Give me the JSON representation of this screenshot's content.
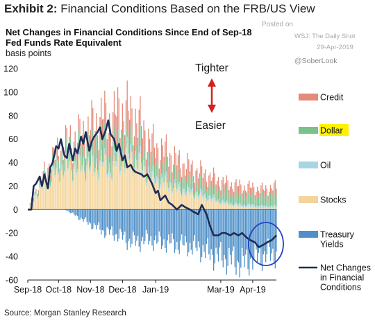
{
  "header": {
    "exhibit_label": "Exhibit 2:",
    "exhibit_title": "Financial Conditions Based on the FRB/US View"
  },
  "watermark": {
    "posted": "Posted on",
    "outlet": "WSJ: The Daily Shot",
    "date": "29-Apr-2019",
    "handle": "@SoberLook"
  },
  "footer": {
    "source": "Source: Morgan Stanley Research"
  },
  "colors": {
    "credit": "#e58a78",
    "dollar": "#7cc08e",
    "oil": "#a8d6e0",
    "stocks": "#f4d49a",
    "treasury": "#4f90c9",
    "net": "#1f2d56",
    "arrow": "#d42020",
    "circle": "#2340c0",
    "highlight": "#fff200"
  },
  "chart_data": {
    "type": "area",
    "title": "Net Changes in Financial Conditions Since End of Sep-18",
    "subtitle": "Fed Funds Rate Equivalent",
    "ylabel": "basis points",
    "ylim": [
      -60,
      120
    ],
    "yticks": [
      -60,
      -40,
      -20,
      0,
      20,
      40,
      60,
      80,
      100,
      120
    ],
    "xlim": [
      "2018-09-28",
      "2019-04-26"
    ],
    "xtick_labels": [
      "Sep-18",
      "Oct-18",
      "Nov-18",
      "Dec-18",
      "Jan-19",
      "Mar-19",
      "Apr-19"
    ],
    "xtick_dates": [
      "2018-09-28",
      "2018-10-24",
      "2018-11-20",
      "2018-12-17",
      "2019-01-14",
      "2019-03-10",
      "2019-04-06"
    ],
    "grid": false,
    "legend_position": "right",
    "annotations": {
      "up": "Tighter",
      "down": "Easier"
    },
    "series": [
      {
        "name": "Credit",
        "key": "credit",
        "dates": [
          "2018-09-28",
          "2018-10-05",
          "2018-10-12",
          "2018-10-19",
          "2018-10-26",
          "2018-11-02",
          "2018-11-09",
          "2018-11-16",
          "2018-11-23",
          "2018-11-30",
          "2018-12-07",
          "2018-12-14",
          "2018-12-21",
          "2018-12-28",
          "2019-01-04",
          "2019-01-11",
          "2019-01-18",
          "2019-01-25",
          "2019-02-01",
          "2019-02-08",
          "2019-02-15",
          "2019-02-22",
          "2019-03-01",
          "2019-03-08",
          "2019-03-15",
          "2019-03-22",
          "2019-03-29",
          "2019-04-05",
          "2019-04-12",
          "2019-04-19",
          "2019-04-26"
        ],
        "values": [
          0,
          2,
          4,
          5,
          6,
          8,
          10,
          12,
          16,
          20,
          23,
          24,
          22,
          20,
          18,
          16,
          15,
          14,
          13,
          12,
          11,
          10,
          9,
          9,
          8,
          8,
          7,
          7,
          6,
          6,
          6
        ]
      },
      {
        "name": "Dollar",
        "key": "dollar",
        "dates": [
          "2018-09-28",
          "2018-10-05",
          "2018-10-12",
          "2018-10-19",
          "2018-10-26",
          "2018-11-02",
          "2018-11-09",
          "2018-11-16",
          "2018-11-23",
          "2018-11-30",
          "2018-12-07",
          "2018-12-14",
          "2018-12-21",
          "2018-12-28",
          "2019-01-04",
          "2019-01-11",
          "2019-01-18",
          "2019-01-25",
          "2019-02-01",
          "2019-02-08",
          "2019-02-15",
          "2019-02-22",
          "2019-03-01",
          "2019-03-08",
          "2019-03-15",
          "2019-03-22",
          "2019-03-29",
          "2019-04-05",
          "2019-04-12",
          "2019-04-19",
          "2019-04-26"
        ],
        "values": [
          0,
          2,
          5,
          8,
          10,
          12,
          14,
          16,
          18,
          17,
          16,
          15,
          14,
          13,
          12,
          11,
          10,
          10,
          9,
          9,
          8,
          8,
          8,
          8,
          8,
          8,
          8,
          8,
          8,
          9,
          10
        ]
      },
      {
        "name": "Oil",
        "key": "oil",
        "dates": [
          "2018-09-28",
          "2018-10-05",
          "2018-10-12",
          "2018-10-19",
          "2018-10-26",
          "2018-11-02",
          "2018-11-09",
          "2018-11-16",
          "2018-11-23",
          "2018-11-30",
          "2018-12-07",
          "2018-12-14",
          "2018-12-21",
          "2018-12-28",
          "2019-01-04",
          "2019-01-11",
          "2019-01-18",
          "2019-01-25",
          "2019-02-01",
          "2019-02-08",
          "2019-02-15",
          "2019-02-22",
          "2019-03-01",
          "2019-03-08",
          "2019-03-15",
          "2019-03-22",
          "2019-03-29",
          "2019-04-05",
          "2019-04-12",
          "2019-04-19",
          "2019-04-26"
        ],
        "values": [
          0,
          1,
          2,
          2,
          2,
          3,
          3,
          3,
          4,
          4,
          4,
          5,
          5,
          5,
          5,
          4,
          4,
          4,
          3,
          3,
          3,
          3,
          3,
          2,
          2,
          2,
          2,
          2,
          2,
          2,
          2
        ]
      },
      {
        "name": "Stocks",
        "key": "stocks",
        "dates": [
          "2018-09-28",
          "2018-10-05",
          "2018-10-12",
          "2018-10-19",
          "2018-10-26",
          "2018-11-02",
          "2018-11-09",
          "2018-11-16",
          "2018-11-23",
          "2018-11-30",
          "2018-12-07",
          "2018-12-14",
          "2018-12-21",
          "2018-12-28",
          "2019-01-04",
          "2019-01-11",
          "2019-01-18",
          "2019-01-25",
          "2019-02-01",
          "2019-02-08",
          "2019-02-15",
          "2019-02-22",
          "2019-03-01",
          "2019-03-08",
          "2019-03-15",
          "2019-03-22",
          "2019-03-29",
          "2019-04-05",
          "2019-04-12",
          "2019-04-19",
          "2019-04-26"
        ],
        "values": [
          0,
          12,
          20,
          28,
          34,
          36,
          34,
          36,
          34,
          38,
          32,
          40,
          42,
          40,
          32,
          24,
          22,
          20,
          16,
          14,
          12,
          10,
          8,
          6,
          4,
          3,
          2,
          2,
          1,
          1,
          1
        ]
      },
      {
        "name": "Treasury Yields",
        "key": "treasury",
        "dates": [
          "2018-09-28",
          "2018-10-05",
          "2018-10-12",
          "2018-10-19",
          "2018-10-26",
          "2018-11-02",
          "2018-11-09",
          "2018-11-16",
          "2018-11-23",
          "2018-11-30",
          "2018-12-07",
          "2018-12-14",
          "2018-12-21",
          "2018-12-28",
          "2019-01-04",
          "2019-01-11",
          "2019-01-18",
          "2019-01-25",
          "2019-02-01",
          "2019-02-08",
          "2019-02-15",
          "2019-02-22",
          "2019-03-01",
          "2019-03-08",
          "2019-03-15",
          "2019-03-22",
          "2019-03-29",
          "2019-04-05",
          "2019-04-12",
          "2019-04-19",
          "2019-04-26"
        ],
        "values": [
          0,
          4,
          6,
          4,
          2,
          -2,
          -6,
          -10,
          -14,
          -18,
          -20,
          -22,
          -26,
          -28,
          -26,
          -26,
          -28,
          -28,
          -30,
          -30,
          -32,
          -34,
          -38,
          -40,
          -42,
          -44,
          -46,
          -42,
          -40,
          -38,
          -38
        ]
      },
      {
        "name": "Net Changes in Financial Conditions",
        "key": "net",
        "dates": [
          "2018-09-28",
          "2018-10-01",
          "2018-10-03",
          "2018-10-05",
          "2018-10-08",
          "2018-10-10",
          "2018-10-12",
          "2018-10-15",
          "2018-10-17",
          "2018-10-19",
          "2018-10-22",
          "2018-10-24",
          "2018-10-26",
          "2018-10-29",
          "2018-10-31",
          "2018-11-02",
          "2018-11-05",
          "2018-11-07",
          "2018-11-09",
          "2018-11-12",
          "2018-11-14",
          "2018-11-16",
          "2018-11-19",
          "2018-11-21",
          "2018-11-23",
          "2018-11-26",
          "2018-11-28",
          "2018-11-30",
          "2018-12-03",
          "2018-12-05",
          "2018-12-07",
          "2018-12-10",
          "2018-12-12",
          "2018-12-14",
          "2018-12-17",
          "2018-12-19",
          "2018-12-21",
          "2018-12-24",
          "2018-12-26",
          "2018-12-28",
          "2019-01-02",
          "2019-01-04",
          "2019-01-07",
          "2019-01-09",
          "2019-01-11",
          "2019-01-14",
          "2019-01-16",
          "2019-01-18",
          "2019-01-22",
          "2019-01-25",
          "2019-01-28",
          "2019-02-01",
          "2019-02-05",
          "2019-02-08",
          "2019-02-12",
          "2019-02-15",
          "2019-02-19",
          "2019-02-22",
          "2019-02-26",
          "2019-03-01",
          "2019-03-04",
          "2019-03-08",
          "2019-03-11",
          "2019-03-14",
          "2019-03-18",
          "2019-03-21",
          "2019-03-25",
          "2019-03-28",
          "2019-04-01",
          "2019-04-04",
          "2019-04-08",
          "2019-04-11",
          "2019-04-15",
          "2019-04-18",
          "2019-04-22",
          "2019-04-26"
        ],
        "values": [
          0,
          0,
          20,
          22,
          28,
          20,
          30,
          18,
          36,
          40,
          54,
          52,
          60,
          46,
          44,
          56,
          42,
          52,
          48,
          62,
          56,
          66,
          50,
          58,
          62,
          66,
          70,
          60,
          68,
          76,
          64,
          60,
          50,
          56,
          42,
          46,
          36,
          38,
          34,
          32,
          30,
          28,
          30,
          26,
          22,
          14,
          16,
          8,
          12,
          6,
          4,
          0,
          4,
          2,
          0,
          -2,
          -4,
          4,
          -4,
          -14,
          -22,
          -22,
          -20,
          -20,
          -22,
          -20,
          -22,
          -20,
          -24,
          -26,
          -28,
          -32,
          -30,
          -28,
          -26,
          -22
        ]
      }
    ]
  }
}
